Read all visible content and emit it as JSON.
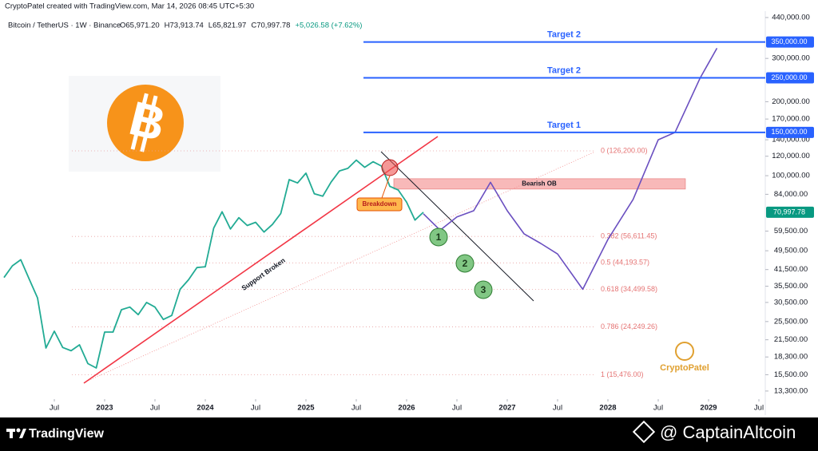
{
  "header": {
    "credit": "CryptoPatel created with TradingView.com, Mar 14, 2026 08:45 UTC+5:30"
  },
  "chart_data": {
    "type": "line",
    "title": "Bitcoin / TetherUS · 1W · Binance",
    "legend_values": [
      "O65,971.20",
      "H73,913.74",
      "L65,821.97",
      "C70,997.78",
      "+5,026.58 (+7.62%)"
    ],
    "log_scale": true,
    "ylim": [
      12800,
      467000
    ],
    "yticks": [
      {
        "value": 440000,
        "label": "440,000.00"
      },
      {
        "value": 300000,
        "label": "300,000.00"
      },
      {
        "value": 200000,
        "label": "200,000.00"
      },
      {
        "value": 170000,
        "label": "170,000.00"
      },
      {
        "value": 140000,
        "label": "140,000.00"
      },
      {
        "value": 120000,
        "label": "120,000.00"
      },
      {
        "value": 100000,
        "label": "100,000.00"
      },
      {
        "value": 84000,
        "label": "84,000.00"
      },
      {
        "value": 59500,
        "label": "59,500.00"
      },
      {
        "value": 49500,
        "label": "49,500.00"
      },
      {
        "value": 41500,
        "label": "41,500.00"
      },
      {
        "value": 35500,
        "label": "35,500.00"
      },
      {
        "value": 30500,
        "label": "30,500.00"
      },
      {
        "value": 25500,
        "label": "25,500.00"
      },
      {
        "value": 21500,
        "label": "21,500.00"
      },
      {
        "value": 18300,
        "label": "18,300.00"
      },
      {
        "value": 15500,
        "label": "15,500.00"
      },
      {
        "value": 13300,
        "label": "13,300.00"
      }
    ],
    "xticks": [
      {
        "value": "2022-07",
        "label": "Jul"
      },
      {
        "value": "2023-01",
        "label": "2023"
      },
      {
        "value": "2023-07",
        "label": "Jul"
      },
      {
        "value": "2024-01",
        "label": "2024"
      },
      {
        "value": "2024-07",
        "label": "Jul"
      },
      {
        "value": "2025-01",
        "label": "2025"
      },
      {
        "value": "2025-07",
        "label": "Jul"
      },
      {
        "value": "2026-01",
        "label": "2026"
      },
      {
        "value": "2026-07",
        "label": "Jul"
      },
      {
        "value": "2027-01",
        "label": "2027"
      },
      {
        "value": "2027-07",
        "label": "Jul"
      },
      {
        "value": "2028-01",
        "label": "2028"
      },
      {
        "value": "2028-07",
        "label": "Jul"
      },
      {
        "value": "2029-01",
        "label": "2029"
      },
      {
        "value": "2029-07",
        "label": "Jul"
      }
    ],
    "series": [
      {
        "color": "#22ab94",
        "x": [
          "2022-01",
          "2022-02",
          "2022-03",
          "2022-04",
          "2022-05",
          "2022-06",
          "2022-07",
          "2022-08",
          "2022-09",
          "2022-10",
          "2022-11",
          "2022-12",
          "2023-01",
          "2023-02",
          "2023-03",
          "2023-04",
          "2023-05",
          "2023-06",
          "2023-07",
          "2023-08",
          "2023-09",
          "2023-10",
          "2023-11",
          "2023-12",
          "2024-01",
          "2024-02",
          "2024-03",
          "2024-04",
          "2024-05",
          "2024-06",
          "2024-07",
          "2024-08",
          "2024-09",
          "2024-10",
          "2024-11",
          "2024-12",
          "2025-01",
          "2025-02",
          "2025-03",
          "2025-04",
          "2025-05",
          "2025-06",
          "2025-07",
          "2025-08",
          "2025-09",
          "2025-10",
          "2025-11",
          "2025-12",
          "2026-01",
          "2026-02",
          "2026-03"
        ],
        "values": [
          38500,
          43000,
          45500,
          38000,
          31800,
          19900,
          23300,
          20000,
          19400,
          20500,
          17200,
          16500,
          23100,
          23100,
          28500,
          29200,
          27200,
          30500,
          29200,
          26000,
          27000,
          34500,
          37700,
          42300,
          42600,
          61200,
          71300,
          60700,
          67500,
          62700,
          64600,
          59000,
          63300,
          70200,
          96400,
          93400,
          102400,
          84400,
          82500,
          94200,
          104600,
          107100,
          115700,
          108200,
          114000,
          109500,
          90500,
          87500,
          78000,
          66000,
          70997.78
        ]
      },
      {
        "color": "#6a4fc0",
        "x": [
          "2026-03",
          "2026-05",
          "2026-07",
          "2026-09",
          "2026-11",
          "2027-01",
          "2027-03",
          "2027-05",
          "2027-07",
          "2027-10",
          "2028-01",
          "2028-04",
          "2028-07",
          "2028-09",
          "2028-12",
          "2029-02"
        ],
        "values": [
          70000,
          60000,
          68000,
          72000,
          94000,
          72000,
          58000,
          53000,
          48000,
          34500,
          55000,
          80000,
          140000,
          150000,
          250000,
          330000
        ]
      }
    ],
    "last_price": {
      "value": 70997.78,
      "label": "70,997.78"
    },
    "targets": [
      {
        "label": "Target 2",
        "value": 350000,
        "price_label": "350,000.00"
      },
      {
        "label": "Target 2",
        "value": 250000,
        "price_label": "250,000.00"
      },
      {
        "label": "Target 1",
        "value": 150000,
        "price_label": "150,000.00"
      }
    ],
    "fib_levels": [
      {
        "value": 126200,
        "label": "0 (126,200.00)"
      },
      {
        "value": 56611.45,
        "label": "0.382 (56,611.45)"
      },
      {
        "value": 44193.57,
        "label": "0.5 (44,193.57)"
      },
      {
        "value": 34499.58,
        "label": "0.618 (34,499.58)"
      },
      {
        "value": 24249.26,
        "label": "0.786 (24,249.26)"
      },
      {
        "value": 15476,
        "label": "1 (15,476.00)"
      }
    ],
    "zone": {
      "label": "Bearish OB",
      "low": 88200,
      "high": 97200
    },
    "annotations": {
      "breakdown": "Breakdown",
      "support": "Support Broken"
    },
    "steps": [
      "1",
      "2",
      "3"
    ]
  },
  "logo": "B",
  "watermark": "CryptoPatel",
  "footer": {
    "brand": "TradingView",
    "credit": "@ CaptainAltcoin"
  }
}
